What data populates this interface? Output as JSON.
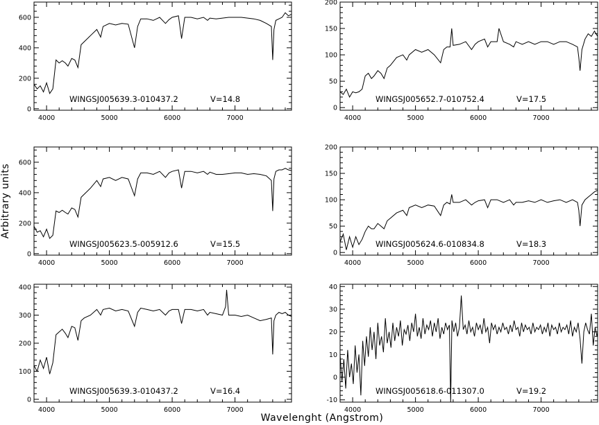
{
  "figure": {
    "xlabel": "Wavelenght (Angstrom)",
    "ylabel": "Arbitrary units"
  },
  "chart_data": [
    {
      "type": "line",
      "object": "WINGSJ005639.3-010437.2",
      "vmag": "V=14.8",
      "xlim": [
        3800,
        7900
      ],
      "ylim": [
        -10,
        700
      ],
      "xticks": [
        4000,
        5000,
        6000,
        7000
      ],
      "yticks": [
        0,
        200,
        400,
        600
      ],
      "series": [
        {
          "x": [
            3800,
            3850,
            3900,
            3950,
            4000,
            4050,
            4100,
            4150,
            4200,
            4250,
            4300,
            4340,
            4400,
            4450,
            4500,
            4550,
            4600,
            4700,
            4800,
            4861,
            4900,
            5000,
            5100,
            5200,
            5300,
            5400,
            5450,
            5500,
            5600,
            5700,
            5800,
            5893,
            5950,
            6000,
            6100,
            6150,
            6200,
            6300,
            6400,
            6500,
            6563,
            6600,
            6700,
            6800,
            6900,
            7000,
            7100,
            7200,
            7300,
            7400,
            7500,
            7580,
            7600,
            7620,
            7650,
            7700,
            7750,
            7800,
            7850,
            7900
          ],
          "y": [
            160,
            130,
            150,
            110,
            170,
            100,
            130,
            320,
            300,
            315,
            300,
            280,
            330,
            320,
            270,
            420,
            440,
            480,
            520,
            470,
            540,
            560,
            550,
            560,
            555,
            400,
            540,
            590,
            590,
            580,
            600,
            560,
            585,
            600,
            610,
            460,
            600,
            600,
            590,
            600,
            580,
            595,
            590,
            595,
            600,
            600,
            600,
            595,
            590,
            580,
            560,
            540,
            320,
            520,
            580,
            590,
            600,
            630,
            610,
            620
          ]
        }
      ]
    },
    {
      "type": "line",
      "object": "WINGSJ005652.7-010752.4",
      "vmag": "V=17.5",
      "xlim": [
        3800,
        7900
      ],
      "ylim": [
        -5,
        200
      ],
      "xticks": [
        4000,
        5000,
        6000,
        7000
      ],
      "yticks": [
        0,
        50,
        100,
        150,
        200
      ],
      "series": [
        {
          "x": [
            3800,
            3850,
            3900,
            3950,
            4000,
            4050,
            4100,
            4150,
            4200,
            4250,
            4300,
            4340,
            4400,
            4450,
            4500,
            4550,
            4600,
            4700,
            4800,
            4861,
            4900,
            5000,
            5100,
            5200,
            5300,
            5400,
            5450,
            5500,
            5550,
            5577,
            5600,
            5700,
            5800,
            5893,
            5950,
            6000,
            6100,
            6150,
            6200,
            6300,
            6330,
            6400,
            6500,
            6563,
            6600,
            6700,
            6800,
            6900,
            7000,
            7100,
            7200,
            7300,
            7400,
            7500,
            7580,
            7600,
            7620,
            7650,
            7700,
            7750,
            7800,
            7850,
            7900
          ],
          "y": [
            30,
            25,
            35,
            20,
            30,
            28,
            30,
            35,
            60,
            65,
            55,
            60,
            70,
            65,
            55,
            75,
            80,
            95,
            100,
            90,
            100,
            110,
            105,
            110,
            100,
            85,
            110,
            115,
            115,
            150,
            118,
            120,
            125,
            110,
            120,
            125,
            130,
            115,
            125,
            125,
            150,
            125,
            120,
            115,
            125,
            120,
            125,
            120,
            125,
            125,
            120,
            125,
            125,
            120,
            115,
            95,
            70,
            110,
            130,
            140,
            135,
            145,
            135
          ]
        }
      ]
    },
    {
      "type": "line",
      "object": "WINGSJ005623.5-005912.6",
      "vmag": "V=15.5",
      "xlim": [
        3800,
        7900
      ],
      "ylim": [
        -10,
        700
      ],
      "xticks": [
        4000,
        5000,
        6000,
        7000
      ],
      "yticks": [
        0,
        200,
        400,
        600
      ],
      "series": [
        {
          "x": [
            3800,
            3850,
            3900,
            3950,
            4000,
            4050,
            4100,
            4150,
            4200,
            4250,
            4300,
            4340,
            4400,
            4450,
            4500,
            4550,
            4600,
            4700,
            4800,
            4861,
            4900,
            5000,
            5100,
            5200,
            5300,
            5400,
            5450,
            5500,
            5600,
            5700,
            5800,
            5893,
            5950,
            6000,
            6100,
            6150,
            6200,
            6300,
            6400,
            6500,
            6563,
            6600,
            6700,
            6800,
            6900,
            7000,
            7100,
            7200,
            7300,
            7400,
            7500,
            7580,
            7600,
            7620,
            7650,
            7700,
            7750,
            7800,
            7850,
            7900
          ],
          "y": [
            180,
            140,
            150,
            110,
            160,
            100,
            120,
            280,
            270,
            285,
            270,
            260,
            300,
            290,
            240,
            370,
            390,
            430,
            480,
            440,
            490,
            500,
            480,
            500,
            490,
            380,
            490,
            530,
            530,
            520,
            540,
            500,
            530,
            540,
            550,
            430,
            540,
            540,
            530,
            540,
            520,
            535,
            520,
            520,
            525,
            530,
            530,
            520,
            525,
            520,
            510,
            480,
            280,
            490,
            540,
            550,
            550,
            560,
            550,
            545
          ]
        }
      ]
    },
    {
      "type": "line",
      "object": "WINGSJ005624.6-010834.8",
      "vmag": "V=18.3",
      "xlim": [
        3800,
        7900
      ],
      "ylim": [
        -5,
        200
      ],
      "xticks": [
        4000,
        5000,
        6000,
        7000
      ],
      "yticks": [
        0,
        50,
        100,
        150,
        200
      ],
      "series": [
        {
          "x": [
            3800,
            3850,
            3900,
            3950,
            4000,
            4050,
            4100,
            4150,
            4200,
            4250,
            4300,
            4340,
            4400,
            4450,
            4500,
            4550,
            4600,
            4700,
            4800,
            4861,
            4900,
            5000,
            5100,
            5200,
            5300,
            5400,
            5450,
            5500,
            5550,
            5577,
            5600,
            5700,
            5800,
            5893,
            5950,
            6000,
            6100,
            6150,
            6200,
            6300,
            6400,
            6500,
            6563,
            6600,
            6700,
            6800,
            6900,
            7000,
            7100,
            7200,
            7300,
            7400,
            7500,
            7580,
            7600,
            7620,
            7650,
            7700,
            7750,
            7800,
            7850,
            7900
          ],
          "y": [
            20,
            35,
            5,
            30,
            10,
            30,
            15,
            25,
            40,
            50,
            45,
            45,
            55,
            50,
            45,
            60,
            65,
            75,
            80,
            70,
            85,
            90,
            85,
            90,
            88,
            70,
            90,
            95,
            92,
            110,
            95,
            95,
            100,
            90,
            95,
            98,
            100,
            85,
            100,
            100,
            95,
            100,
            90,
            95,
            95,
            98,
            95,
            100,
            95,
            98,
            100,
            95,
            100,
            95,
            80,
            50,
            90,
            100,
            105,
            110,
            115,
            118
          ]
        }
      ]
    },
    {
      "type": "line",
      "object": "WINGSJ005639.3-010437.2",
      "vmag": "V=16.4",
      "xlim": [
        3800,
        7900
      ],
      "ylim": [
        -10,
        410
      ],
      "xticks": [
        4000,
        5000,
        6000,
        7000
      ],
      "yticks": [
        0,
        100,
        200,
        300,
        400
      ],
      "series": [
        {
          "x": [
            3800,
            3850,
            3900,
            3950,
            4000,
            4050,
            4100,
            4150,
            4200,
            4250,
            4300,
            4340,
            4400,
            4450,
            4500,
            4550,
            4600,
            4700,
            4800,
            4861,
            4900,
            5000,
            5100,
            5200,
            5300,
            5400,
            5450,
            5500,
            5600,
            5700,
            5800,
            5893,
            5950,
            6000,
            6100,
            6150,
            6200,
            6300,
            6400,
            6500,
            6563,
            6600,
            6700,
            6800,
            6850,
            6867,
            6900,
            7000,
            7100,
            7200,
            7300,
            7400,
            7500,
            7580,
            7600,
            7620,
            7650,
            7700,
            7750,
            7800,
            7850,
            7900
          ],
          "y": [
            120,
            100,
            140,
            110,
            150,
            90,
            130,
            230,
            240,
            250,
            235,
            220,
            260,
            255,
            210,
            280,
            290,
            300,
            320,
            300,
            320,
            325,
            315,
            320,
            315,
            260,
            310,
            325,
            320,
            315,
            320,
            300,
            315,
            320,
            320,
            270,
            320,
            320,
            315,
            320,
            300,
            310,
            305,
            300,
            330,
            390,
            300,
            300,
            295,
            300,
            290,
            280,
            285,
            290,
            160,
            280,
            300,
            310,
            305,
            310,
            300,
            295
          ]
        }
      ]
    },
    {
      "type": "line",
      "object": "WINGSJ005618.6-011307.0",
      "vmag": "V=19.2",
      "xlim": [
        3800,
        7900
      ],
      "ylim": [
        -11,
        41
      ],
      "xticks": [
        4000,
        5000,
        6000,
        7000
      ],
      "yticks": [
        -10,
        0,
        10,
        20,
        30,
        40
      ],
      "series": [
        {
          "x": [
            3800,
            3830,
            3860,
            3890,
            3920,
            3950,
            3980,
            4010,
            4040,
            4070,
            4100,
            4130,
            4160,
            4190,
            4220,
            4250,
            4280,
            4310,
            4340,
            4370,
            4400,
            4430,
            4460,
            4490,
            4520,
            4550,
            4580,
            4610,
            4640,
            4670,
            4700,
            4730,
            4760,
            4790,
            4820,
            4850,
            4880,
            4910,
            4940,
            4970,
            5000,
            5030,
            5060,
            5090,
            5120,
            5150,
            5180,
            5210,
            5240,
            5270,
            5300,
            5330,
            5360,
            5390,
            5420,
            5450,
            5480,
            5510,
            5540,
            5560,
            5580,
            5610,
            5640,
            5670,
            5700,
            5730,
            5760,
            5790,
            5820,
            5850,
            5880,
            5910,
            5940,
            5970,
            6000,
            6030,
            6060,
            6090,
            6120,
            6150,
            6180,
            6210,
            6240,
            6270,
            6300,
            6330,
            6360,
            6390,
            6420,
            6450,
            6480,
            6510,
            6540,
            6570,
            6600,
            6630,
            6660,
            6690,
            6720,
            6750,
            6780,
            6810,
            6840,
            6870,
            6900,
            6930,
            6960,
            6990,
            7020,
            7050,
            7080,
            7110,
            7140,
            7170,
            7200,
            7230,
            7260,
            7290,
            7320,
            7350,
            7380,
            7410,
            7440,
            7470,
            7500,
            7530,
            7560,
            7590,
            7620,
            7650,
            7680,
            7710,
            7740,
            7770,
            7800,
            7830,
            7860,
            7890,
            7900
          ],
          "y": [
            10,
            -2,
            8,
            -5,
            12,
            0,
            6,
            -3,
            14,
            2,
            10,
            -8,
            16,
            5,
            18,
            9,
            22,
            12,
            20,
            8,
            24,
            14,
            18,
            11,
            26,
            15,
            20,
            13,
            24,
            16,
            22,
            18,
            25,
            14,
            21,
            19,
            23,
            16,
            24,
            20,
            28,
            18,
            22,
            17,
            26,
            19,
            23,
            21,
            25,
            18,
            24,
            20,
            26,
            17,
            22,
            19,
            24,
            21,
            23,
            -11,
            25,
            20,
            24,
            18,
            22,
            36,
            21,
            23,
            19,
            25,
            20,
            22,
            18,
            24,
            21,
            23,
            19,
            26,
            20,
            22,
            15,
            24,
            21,
            23,
            19,
            22,
            20,
            24,
            21,
            22,
            19,
            23,
            20,
            25,
            21,
            22,
            18,
            24,
            20,
            23,
            21,
            22,
            19,
            24,
            20,
            22,
            21,
            23,
            19,
            22,
            20,
            24,
            18,
            23,
            21,
            22,
            19,
            24,
            20,
            22,
            21,
            23,
            19,
            25,
            18,
            22,
            20,
            24,
            17,
            6,
            20,
            24,
            21,
            19,
            28,
            14,
            22,
            18,
            20
          ]
        }
      ]
    }
  ]
}
